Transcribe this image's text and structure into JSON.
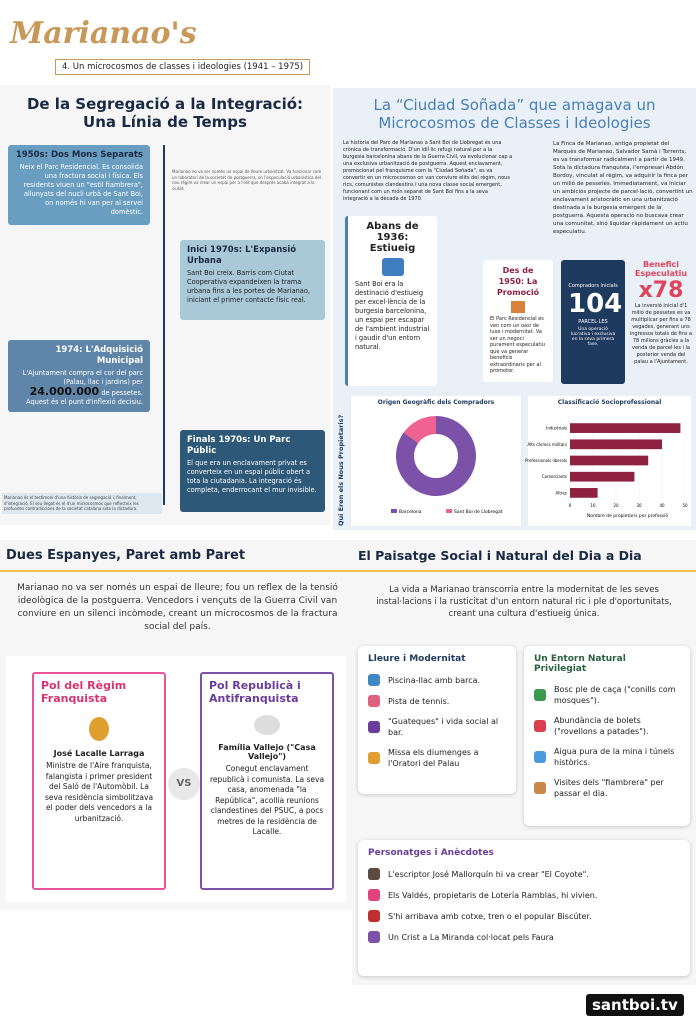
{
  "header": {
    "logo": "Marianao's",
    "subtitle": "4. Un microcosmos de classes i ideologies (1941 – 1975)"
  },
  "timeline": {
    "title": "De la Segregació a la Integració: Una Línia de Temps",
    "items": [
      {
        "title": "1950s: Dos Mons Separats",
        "text": "Neix el Parc Residencial. Es consolida una fractura social i física. Els residents viuen un \"estil fiambrera\", allunyats del nucli urbà de Sant Boi, on només hi van per al servei domèstic."
      },
      {
        "title": "Inici 1970s: L'Expansió Urbana",
        "text": "Sant Boi creix. Barris com Ciutat Cooperativa expandeixen la trama urbana fins a les portes de Marianao, iniciant el primer contacte físic real."
      },
      {
        "title": "1974: L'Adquisició Municipal",
        "text": "L'Ajuntament compra el cor del parc (Palau, llac i jardins) per",
        "amount": "24.000.000",
        "text2": "de pessetes. Aquest és el punt d'inflexió decisiu."
      },
      {
        "title": "Finals 1970s: Un Parc Públic",
        "text": "El que era un enclavament privat es converteix en un espai públic obert a tota la ciutadania. La integració és completa, enderrocant el mur invisible."
      }
    ],
    "side_note": "Marianao no va ser només un espai de lleure urbanitzat. Va funcionar com un laboratori de la societat de postguerra, on l'especulació urbanística del nou règim va crear un espai per a l'elit que després acabà integrat a la ciutat.",
    "footer_note": "Marianao és el testimoni d'una història de segregació i, finalment, d'integració. El seu llegat és el d'un microcosmos que reflecteix les profundes contradiccions de la societat catalana sota la dictadura."
  },
  "story": {
    "title": "La “Ciudad Soñada” que amagava un Microcosmos de Classes i Ideologies",
    "col1": "La història del Parc de Marianao a Sant Boi de Llobregat és una crònica de transformació. D'un idíl·lic refugi natural per a la burgesia barcelonina abans de la Guerra Civil, va evolucionar cap a una exclusiva urbanització de postguerra. Aquest enclavament, promocionat pel franquisme com la \"Ciudad Soñada\", es va convertir en un microcosmos on van conviure elits del règim, nous rics, comunistes clandestins i una nova classe social emergent, funcionant com un món separat de Sant Boi fins a la seva integració a la dècada de 1970.",
    "col2": "La Finca de Marianao, antiga propietat del Marquès de Marianao, Salvador Samà i Torrents, es va transformar radicalment a partir de 1949. Sota la dictadura franquista, l'empresari Abdón Bordoy, vinculat al règim, va adquirir la finca per un milió de pessetes. Immediatament, va iniciar un ambiciós projecte de parcel·lació, convertint un enclavament aristocràtic en una urbanització destinada a la burgesia emergent de la postguerra. Aquesta operació no buscava crear una comunitat, sinó liquidar ràpidament un actiu especulatiu.",
    "card1": {
      "title": "Abans de 1936: Estiueig",
      "text": "Sant Boi era la destinació d'estiueig per excel·lència de la burgesia barcelonina, un espai per escapar de l'ambient industrial i gaudir d'un entorn natural."
    },
    "card2": {
      "title": "Des de 1950: La Promoció",
      "text": "El Parc Residencial es ven com un oasi de luxe i modernitat. Va ser un negoci purament especulatiu que va generar beneficis extraordinaris per al promotor."
    },
    "card3": {
      "label": "Compradors inicials",
      "number": "104",
      "unit": "PARCEL·LES",
      "text": "Una operació lucrativa i exclusiva en la seva primera fase."
    },
    "card4": {
      "title": "Benefici Especulatiu",
      "number": "x78",
      "text": "La inversió inicial d'1 milió de pessetes es va multiplicar per fins a 78 vegades, generant uns ingressos totals de fins a 78 milions gràcies a la venda de parcel·les i la posterior venda del palau a l'Ajuntament."
    },
    "side_title": "Qui Eren els Nous Propietaris?"
  },
  "donut_chart": {
    "type": "pie",
    "title": "Origen Geogràfic dels Compradors",
    "categories": [
      "Barcelona",
      "Sant Boi de Llobregat"
    ],
    "values": [
      85,
      15
    ],
    "colors": [
      "#7b52a8",
      "#f06292"
    ]
  },
  "bar_chart": {
    "type": "bar",
    "title": "Classificació Socioprofessional",
    "categories": [
      "Industrials",
      "Alts càrrecs militars",
      "Professionals liberals",
      "Comerciants",
      "Altres"
    ],
    "values": [
      48,
      40,
      34,
      28,
      12
    ],
    "color": "#8e2040",
    "xlim": [
      0,
      50
    ],
    "xticks": [
      0,
      10,
      20,
      30,
      40,
      50
    ],
    "xlabel": "Nombre de propietaris per professió"
  },
  "contrast": {
    "title": "Dues Espanyes, Paret amb Paret",
    "intro": "Marianao no va ser només un espai de lleure; fou un reflex de la tensió ideològica de la postguerra. Vencedors i vençuts de la Guerra Civil van conviure en un silenci incòmode, creant un microcosmos de la fractura social del país.",
    "left": {
      "title": "Pol del Règim Franquista",
      "name": "José Lacalle Larraga",
      "text": "Ministre de l'Aire franquista, falangista i primer president del Saló de l'Automòbil. La seva residència simbolitzava el poder dels vencedors a la urbanització."
    },
    "vs": "VS",
    "right": {
      "title": "Pol Republicà i Antifranquista",
      "name": "Família Vallejo (\"Casa Vallejo\")",
      "text": "Conegut enclavament republicà i comunista. La seva casa, anomenada \"la República\", acollia reunions clandestines del PSUC, a pocs metres de la residència de Lacalle."
    }
  },
  "daily": {
    "title": "El Paisatge Social i Natural del Dia a Dia",
    "intro": "La vida a Marianao transcorria entre la modernitat de les seves instal·lacions i la rusticitat d'un entorn natural ric i ple d'oportunitats, creant una cultura d'estiueig única.",
    "leisure": {
      "title": "Lleure i Modernitat",
      "items": [
        "Piscina-llac amb barca.",
        "Pista de tennis.",
        "\"Guateques\" i vida social al bar.",
        "Missa els diumenges a l'Oratori del Palau"
      ]
    },
    "nature": {
      "title": "Un Entorn Natural Privilegiat",
      "items": [
        "Bosc ple de caça (\"conills com mosques\").",
        "Abundància de bolets (\"rovellons a patades\").",
        "Aigua pura de la mina i túnels històrics.",
        "Visites dels \"fiambrera\" per passar el dia."
      ]
    },
    "people": {
      "title": "Personatges i Anècdotes",
      "items": [
        "L'escriptor José Mallorquín hi va crear \"El Coyote\".",
        "Els Valdés, propietaris de Lotería Ramblas, hi vivien.",
        "S'hi arribava amb cotxe, tren o el popular Biscúter.",
        "Un Crist a La Miranda col·locat pels Faura"
      ]
    }
  },
  "footer": {
    "brand": "santboi.tv"
  }
}
